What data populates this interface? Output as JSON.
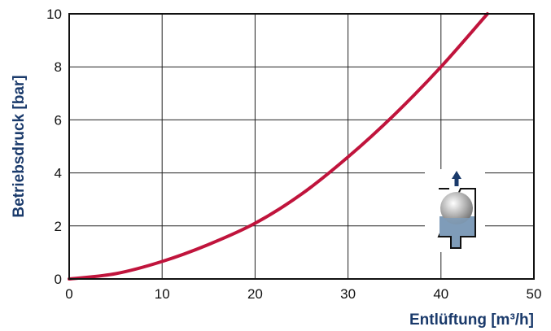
{
  "chart_data": {
    "type": "line",
    "title": "",
    "xlabel": "Entlüftung [m³/h]",
    "ylabel": "Betriebsdruck [bar]",
    "xlim": [
      0,
      50
    ],
    "ylim": [
      0,
      10
    ],
    "x_ticks": [
      "0",
      "10",
      "20",
      "30",
      "40",
      "50"
    ],
    "y_ticks": [
      "0",
      "2",
      "4",
      "6",
      "8",
      "10"
    ],
    "grid": true,
    "series": [
      {
        "x": [
          0,
          5,
          10,
          15,
          20,
          25,
          30,
          35,
          40,
          45
        ],
        "y": [
          0,
          0.2,
          0.66,
          1.3,
          2.1,
          3.2,
          4.6,
          6.2,
          8.0,
          10.0
        ],
        "color": "#c0143c"
      }
    ]
  },
  "colors": {
    "label": "#1a3a6b",
    "curve": "#c0143c",
    "icon_fluid": "#7f9cb8",
    "icon_arrow": "#1a3a6b"
  },
  "icon": "float-valve-icon"
}
